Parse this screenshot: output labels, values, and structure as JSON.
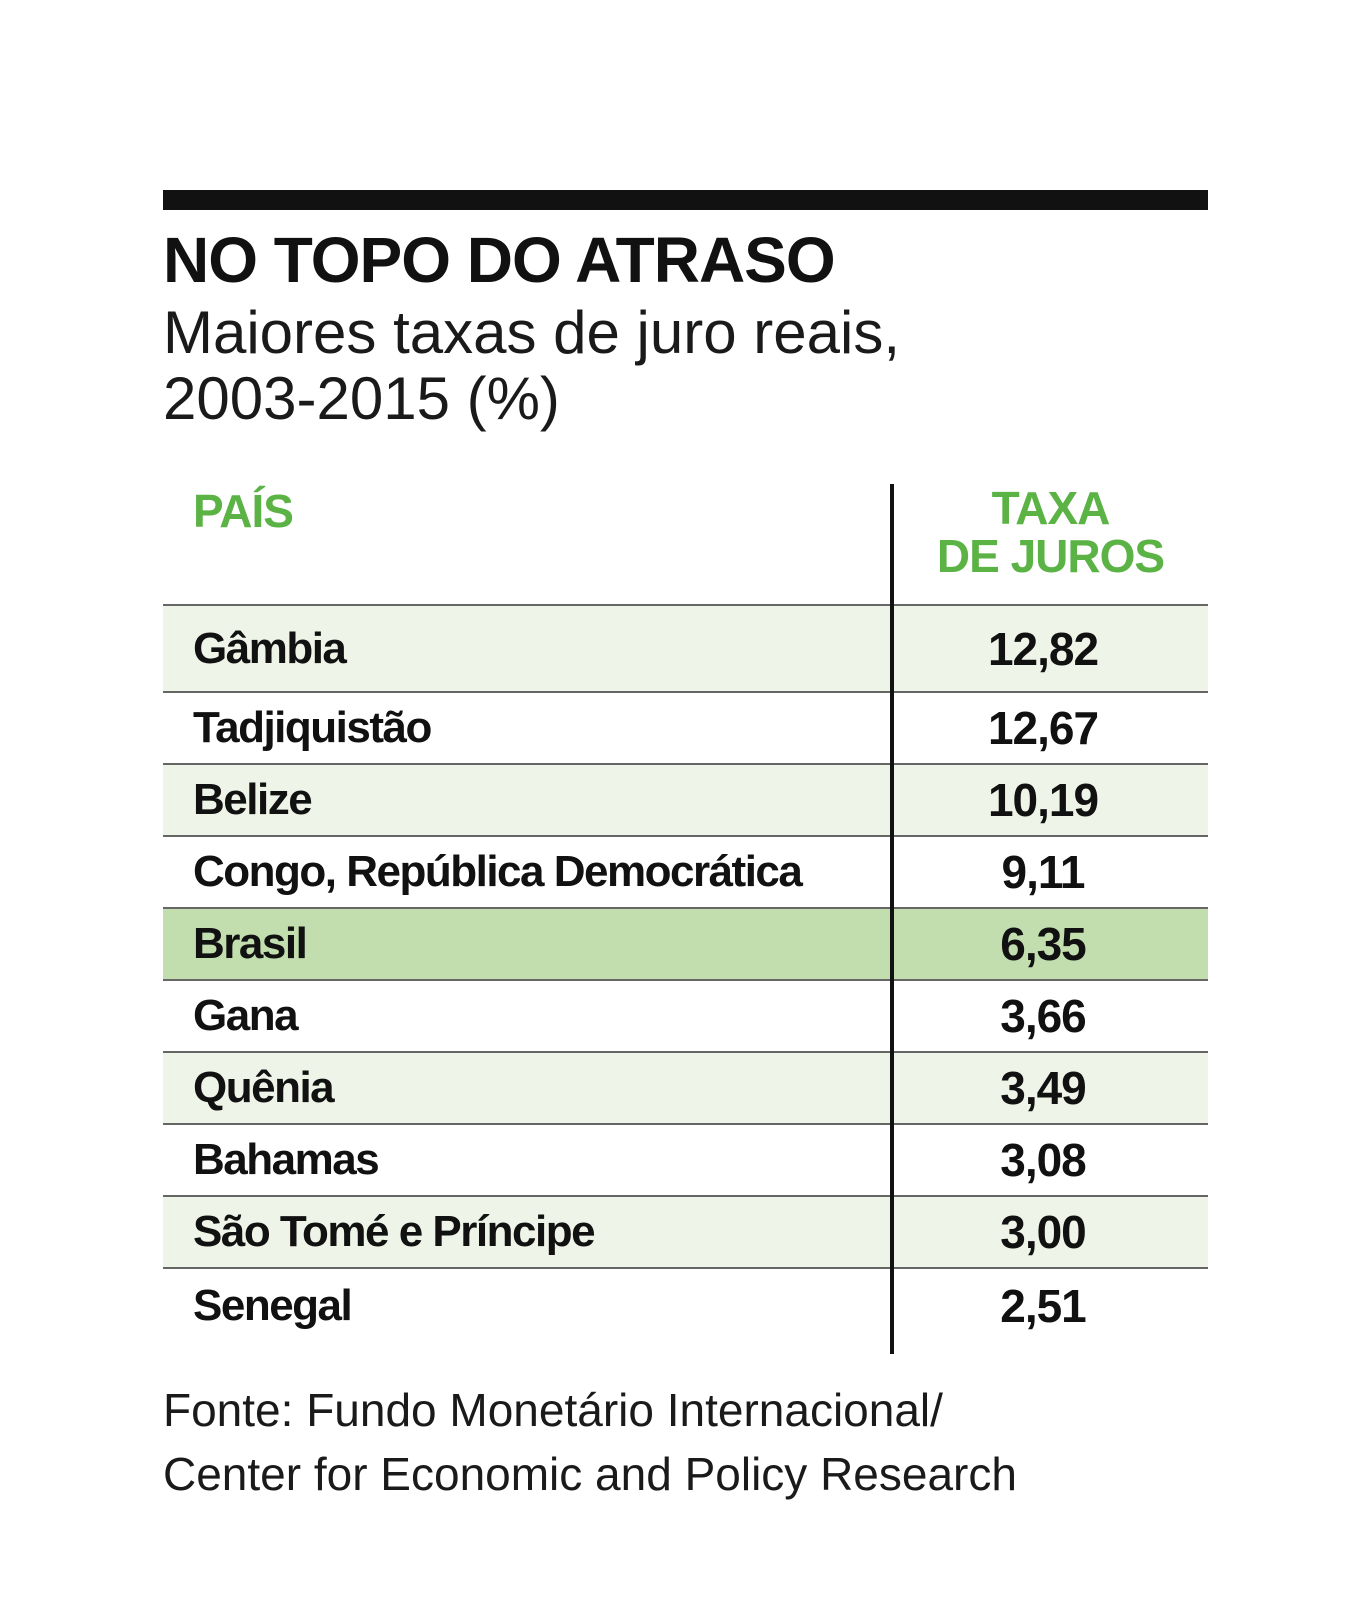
{
  "chart_data": {
    "type": "table",
    "title": "NO TOPO DO ATRASO",
    "subtitle": [
      "Maiores taxas de juro reais,",
      "2003-2015 (%)"
    ],
    "columns": {
      "country": "PAÍS",
      "rate": [
        "TAXA",
        "DE JUROS"
      ]
    },
    "rows": [
      {
        "country": "Gâmbia",
        "value": 12.82,
        "display": "12,82"
      },
      {
        "country": "Tadjiquistão",
        "value": 12.67,
        "display": "12,67"
      },
      {
        "country": "Belize",
        "value": 10.19,
        "display": "10,19"
      },
      {
        "country": "Congo, República Democrática",
        "value": 9.11,
        "display": "9,11"
      },
      {
        "country": "Brasil",
        "value": 6.35,
        "display": "6,35",
        "highlighted": true
      },
      {
        "country": "Gana",
        "value": 3.66,
        "display": "3,66"
      },
      {
        "country": "Quênia",
        "value": 3.49,
        "display": "3,49"
      },
      {
        "country": "Bahamas",
        "value": 3.08,
        "display": "3,08"
      },
      {
        "country": "São Tomé e Príncipe",
        "value": 3.0,
        "display": "3,00"
      },
      {
        "country": "Senegal",
        "value": 2.51,
        "display": "2,51"
      }
    ],
    "source": [
      "Fonte: Fundo Monetário Internacional/",
      "Center for Economic and Policy Research"
    ]
  },
  "colors": {
    "accent": "#5bb345",
    "highlight_row": "#c2deaf",
    "shaded_row": "#eff4e8",
    "rule": "#111111"
  }
}
